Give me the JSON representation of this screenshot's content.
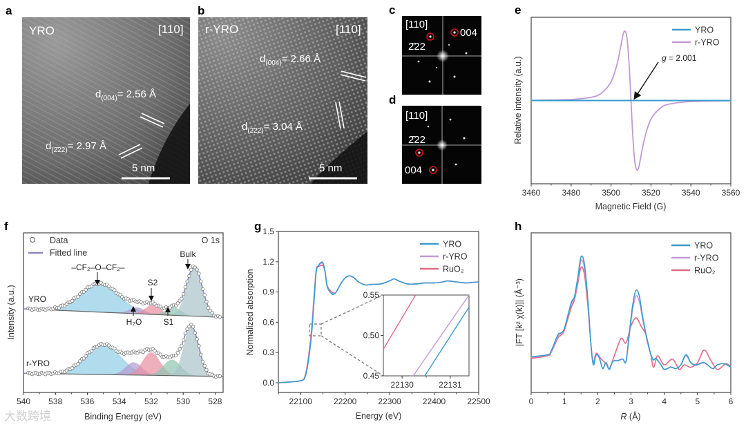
{
  "panels": {
    "a": "a",
    "b": "b",
    "c": "c",
    "d": "d",
    "e": "e",
    "f": "f",
    "g": "g",
    "h": "h"
  },
  "micrographs": {
    "a": {
      "sample": "YRO",
      "zone": "[110]",
      "d1": {
        "pre": "d",
        "sub": "(004)",
        "post": "= 2.56 Å"
      },
      "d2": {
        "pre": "d",
        "sub": "(2̄22)",
        "post": "= 2.97 Å"
      },
      "scale": "5 nm"
    },
    "b": {
      "sample": "r-YRO",
      "zone": "[110]",
      "d1": {
        "pre": "d",
        "sub": "(004)",
        "post": "= 2.66 Å"
      },
      "d2": {
        "pre": "d",
        "sub": "(2̄22)",
        "post": "= 3.04 Å"
      },
      "scale": "5 nm"
    }
  },
  "fft": {
    "c": {
      "zone": "[110]",
      "spot1": "2̄22",
      "spot2": "004"
    },
    "d": {
      "zone": "[110]",
      "spot1": "2̄22",
      "spot2": "004"
    }
  },
  "colors": {
    "YRO": "#3a9bd0",
    "r-YRO": "#c29ad6",
    "RuO2": "#e06b84",
    "fit": "#8a86c0"
  },
  "watermark": "大数跨境",
  "chart_data": [
    {
      "id": "e",
      "type": "line",
      "xlabel": "Magnetic Field (G)",
      "ylabel": "Relative intensity (a.u.)",
      "xlim": [
        3460,
        3560
      ],
      "ylim": [
        -1.2,
        1.2
      ],
      "xticks": [
        3460,
        3480,
        3500,
        3520,
        3540,
        3560
      ],
      "legend": "top-right",
      "annotation": {
        "italic": "g",
        "text": " = 2.001"
      },
      "series": [
        {
          "name": "YRO",
          "x": [
            3460,
            3560
          ],
          "y": [
            0,
            0
          ]
        },
        {
          "name": "r-YRO",
          "x": [
            3460,
            3480,
            3490,
            3495,
            3500,
            3503,
            3505,
            3506,
            3507,
            3508,
            3509,
            3510,
            3511,
            3512,
            3513,
            3514,
            3515,
            3517,
            3520,
            3525,
            3530,
            3540,
            3560
          ],
          "y": [
            0.003,
            0.015,
            0.047,
            0.102,
            0.268,
            0.523,
            0.799,
            0.95,
            1.0,
            0.899,
            0.551,
            0,
            -0.551,
            -0.899,
            -1.0,
            -0.95,
            -0.799,
            -0.523,
            -0.268,
            -0.102,
            -0.047,
            -0.015,
            -0.003
          ]
        }
      ]
    },
    {
      "id": "f",
      "type": "area",
      "title": "O 1s",
      "xlabel": "Binding Energy (eV)",
      "ylabel": "Intensity (a.u.)",
      "xlim": [
        540,
        527.5
      ],
      "ylim": [
        0,
        10
      ],
      "xticks": [
        540,
        538,
        536,
        534,
        532,
        530,
        528
      ],
      "legend": "top-left",
      "legend_entries": [
        "Data",
        "Fitted line"
      ],
      "spectra": [
        {
          "name": "YRO",
          "baseline": [
            5.24,
            4.7
          ],
          "components": [
            {
              "name": "–CF₂–O–CF₂–",
              "center": 535.2,
              "height": 1.8,
              "fwhm": 2.9,
              "color": "#8fcde6"
            },
            {
              "name": "H₂O",
              "center": 532.9,
              "height": 0.4,
              "fwhm": 1.1,
              "color": "#b59ad0"
            },
            {
              "name": "S2",
              "center": 531.9,
              "height": 0.6,
              "fwhm": 1.1,
              "color": "#e88ea0"
            },
            {
              "name": "S1",
              "center": 530.6,
              "height": 0.5,
              "fwhm": 1.1,
              "color": "#8ec4b0"
            },
            {
              "name": "Bulk",
              "center": 529.3,
              "height": 3.1,
              "fwhm": 1.15,
              "color": "#a9c3c8"
            }
          ]
        },
        {
          "name": "r-YRO",
          "baseline": [
            1.2,
            1.0
          ],
          "components": [
            {
              "name": "–CF₂–O–CF₂–",
              "center": 535.0,
              "height": 1.9,
              "fwhm": 2.6,
              "color": "#8fcde6"
            },
            {
              "name": "H₂O",
              "center": 533.1,
              "height": 0.8,
              "fwhm": 1.2,
              "color": "#b59ad0"
            },
            {
              "name": "S2",
              "center": 532.0,
              "height": 1.45,
              "fwhm": 1.3,
              "color": "#e88ea0"
            },
            {
              "name": "S1",
              "center": 530.7,
              "height": 1.0,
              "fwhm": 1.3,
              "color": "#8ec4b0"
            },
            {
              "name": "Bulk",
              "center": 529.5,
              "height": 3.1,
              "fwhm": 1.1,
              "color": "#a9c3c8"
            }
          ]
        }
      ]
    },
    {
      "id": "g",
      "type": "line",
      "xlabel": "Energy (eV)",
      "ylabel": "Normalized absorption",
      "xlim": [
        22050,
        22500
      ],
      "ylim": [
        -0.096,
        1.5
      ],
      "xticks": [
        22100,
        22200,
        22300,
        22400,
        22500
      ],
      "yticks": [
        "0.0",
        "0.3",
        "0.6",
        "0.9",
        "1.2",
        "1.5"
      ],
      "legend": "top-right",
      "x": [
        22050,
        22100,
        22110,
        22115,
        22120,
        22125,
        22130,
        22135,
        22140,
        22145,
        22150,
        22155,
        22160,
        22170,
        22175,
        22180,
        22190,
        22200,
        22210,
        22220,
        22230,
        22245,
        22260,
        22280,
        22300,
        22310,
        22320,
        22340,
        22360,
        22380,
        22400,
        22420,
        22430,
        22450,
        22470,
        22500
      ],
      "series": [
        {
          "name": "YRO",
          "y": [
            0,
            0.02,
            0.06,
            0.15,
            0.3,
            0.5,
            0.8,
            1.1,
            1.16,
            1.19,
            1.19,
            1.1,
            0.95,
            0.88,
            0.88,
            0.9,
            0.98,
            1.04,
            1.06,
            1.04,
            1.0,
            0.97,
            0.975,
            0.98,
            1.01,
            1.03,
            1.01,
            0.98,
            0.98,
            0.99,
            0.99,
            1.0,
            1.01,
            1.0,
            0.99,
            1.0
          ]
        },
        {
          "name": "r-YRO",
          "y": [
            0,
            0.02,
            0.06,
            0.16,
            0.31,
            0.51,
            0.81,
            1.1,
            1.16,
            1.18,
            1.18,
            1.1,
            0.95,
            0.89,
            0.885,
            0.9,
            0.98,
            1.04,
            1.06,
            1.04,
            1.0,
            0.97,
            0.975,
            0.98,
            1.01,
            1.03,
            1.01,
            0.98,
            0.98,
            0.99,
            0.99,
            1.0,
            1.01,
            1.0,
            0.99,
            1.0
          ]
        },
        {
          "name": "RuO₂",
          "y": [
            0,
            0.02,
            0.07,
            0.18,
            0.34,
            0.55,
            0.85,
            1.12,
            1.15,
            1.16,
            1.16,
            1.1,
            0.96,
            0.9,
            0.89,
            0.9,
            0.98,
            1.04,
            1.06,
            1.04,
            1.0,
            0.97,
            0.975,
            0.98,
            1.01,
            1.03,
            1.01,
            0.98,
            0.98,
            0.99,
            0.99,
            1.0,
            1.01,
            1.0,
            0.99,
            1.0
          ]
        }
      ]
    },
    {
      "id": "g-inset",
      "type": "line",
      "xlim": [
        22129.61,
        22131.39
      ],
      "ylim": [
        0.45,
        0.55
      ],
      "xticks": [
        22130,
        22131
      ],
      "yticks": [
        "0.45",
        "0.50",
        "0.55"
      ],
      "series": [
        {
          "name": "YRO",
          "x": [
            22130.47,
            22131.39
          ],
          "y": [
            0.45,
            0.535
          ]
        },
        {
          "name": "r-YRO",
          "x": [
            22130.23,
            22131.39
          ],
          "y": [
            0.45,
            0.55
          ]
        },
        {
          "name": "RuO₂",
          "x": [
            22129.61,
            22130.28
          ],
          "y": [
            0.483,
            0.55
          ]
        }
      ]
    },
    {
      "id": "h",
      "type": "line",
      "xlabel": {
        "italic": "R",
        "text": " (Å)"
      },
      "ylabel": "|FT [k² χ(k)]| (Å⁻³)",
      "xlim": [
        0,
        6
      ],
      "ylim": [
        0,
        10
      ],
      "xticks": [
        0,
        1,
        2,
        3,
        4,
        5,
        6
      ],
      "legend": "top-right",
      "series": [
        {
          "name": "YRO",
          "x": [
            0,
            0.5,
            0.6,
            0.8,
            0.9,
            1.0,
            1.2,
            1.3,
            1.4,
            1.5,
            1.6,
            1.7,
            1.8,
            1.87,
            1.95,
            2.05,
            2.15,
            2.25,
            2.35,
            2.45,
            2.6,
            2.75,
            2.85,
            2.95,
            3.05,
            3.15,
            3.25,
            3.35,
            3.5,
            3.65,
            3.75,
            3.9,
            4.0,
            4.2,
            4.35,
            4.5,
            4.65,
            4.8,
            4.95,
            5.2,
            5.45,
            5.6,
            5.8,
            6.0
          ],
          "y": [
            2.23,
            2.37,
            2.6,
            3.6,
            3.74,
            4.03,
            5.6,
            6.0,
            7.2,
            8.5,
            8.06,
            5.9,
            2.88,
            1.73,
            2.37,
            2.16,
            1.5,
            1.87,
            1.44,
            1.94,
            1.98,
            2.09,
            1.94,
            3.74,
            5.47,
            6.4,
            6.04,
            4.75,
            3.17,
            2.09,
            2.13,
            1.73,
            1.44,
            1.58,
            1.5,
            1.73,
            2.37,
            1.87,
            1.73,
            1.87,
            1.5,
            1.73,
            1.8,
            1.58
          ]
        },
        {
          "name": "r-YRO",
          "x": [
            0,
            0.5,
            0.6,
            0.8,
            0.9,
            1.0,
            1.2,
            1.3,
            1.4,
            1.5,
            1.6,
            1.7,
            1.8,
            1.87,
            1.95,
            2.05,
            2.15,
            2.25,
            2.35,
            2.45,
            2.6,
            2.75,
            2.85,
            2.95,
            3.05,
            3.15,
            3.25,
            3.35,
            3.5,
            3.65,
            3.75,
            3.9,
            4.0,
            4.2,
            4.35,
            4.5,
            4.65,
            4.8,
            4.95,
            5.2,
            5.45,
            5.6,
            5.8,
            6.0
          ],
          "y": [
            2.2,
            2.35,
            2.55,
            3.5,
            3.7,
            4.0,
            5.5,
            5.9,
            7.0,
            8.27,
            7.8,
            5.8,
            2.9,
            1.75,
            2.35,
            2.15,
            1.5,
            1.85,
            1.45,
            1.95,
            2.0,
            2.1,
            1.95,
            3.6,
            5.2,
            6.04,
            5.7,
            4.6,
            3.1,
            2.1,
            2.1,
            1.75,
            1.45,
            1.6,
            1.5,
            1.73,
            2.3,
            1.85,
            1.7,
            1.85,
            1.5,
            1.73,
            1.8,
            1.58
          ]
        },
        {
          "name": "RuO₂",
          "x": [
            0,
            0.5,
            0.6,
            0.8,
            0.9,
            1.0,
            1.2,
            1.3,
            1.4,
            1.5,
            1.6,
            1.7,
            1.8,
            1.87,
            1.95,
            2.1,
            2.25,
            2.35,
            2.5,
            2.7,
            2.85,
            3.0,
            3.15,
            3.3,
            3.45,
            3.6,
            3.68,
            3.8,
            4.0,
            4.25,
            4.45,
            4.6,
            4.8,
            5.0,
            5.2,
            5.4,
            5.6,
            5.85,
            6.0
          ],
          "y": [
            2.13,
            2.3,
            2.5,
            3.4,
            3.6,
            3.9,
            5.3,
            5.8,
            6.8,
            7.84,
            7.4,
            5.5,
            2.9,
            1.87,
            2.45,
            2.1,
            1.8,
            1.5,
            2.3,
            3.38,
            3.1,
            4.17,
            4.68,
            4.17,
            3.6,
            2.3,
            1.58,
            2.3,
            1.73,
            2.09,
            1.44,
            1.73,
            1.58,
            1.87,
            2.66,
            2.01,
            1.44,
            1.8,
            1.58
          ]
        }
      ]
    }
  ]
}
